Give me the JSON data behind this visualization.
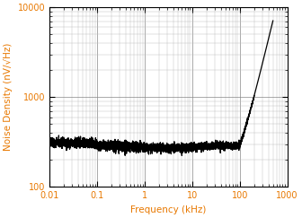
{
  "xlabel": "Frequency (kHz)",
  "ylabel": "Noise Density (nV/√Hz)",
  "xlabel_color": "#E87800",
  "ylabel_color": "#E87800",
  "tick_label_color": "#E87800",
  "tick_color": "#000000",
  "xmin": 0.01,
  "xmax": 1000,
  "ymin": 100,
  "ymax": 10000,
  "background_color": "#ffffff",
  "line_color": "#000000",
  "grid_major_color": "#888888",
  "grid_minor_color": "#bbbbbb",
  "figsize": [
    3.36,
    2.43
  ],
  "dpi": 100
}
